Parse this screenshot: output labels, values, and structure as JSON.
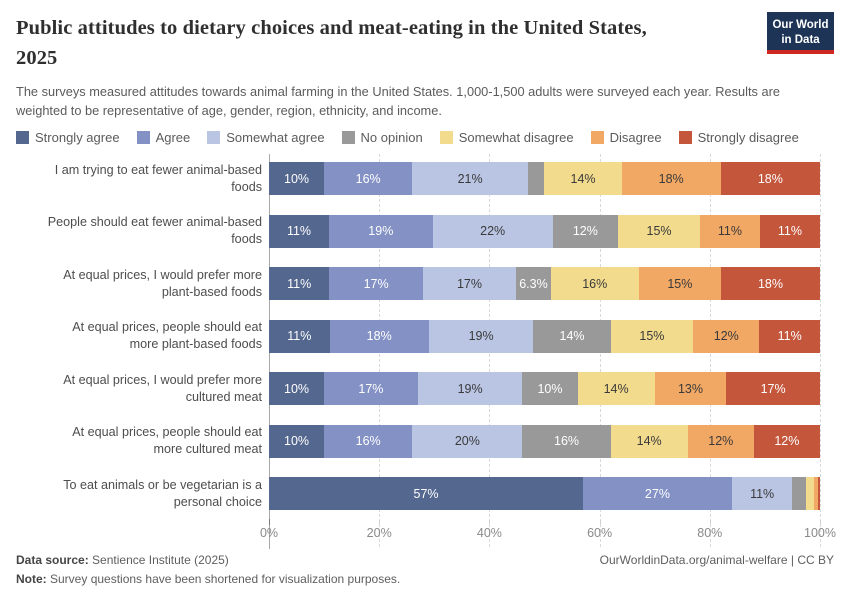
{
  "header": {
    "title": "Public attitudes to dietary choices and meat-eating in the United States,\n2025",
    "subtitle": "The surveys measured attitudes towards animal farming in the United States. 1,000-1,500 adults were surveyed each year. Results are weighted to be representative of age, gender, region, ethnicity, and income.",
    "logo_line1": "Our World",
    "logo_line2": "in Data"
  },
  "colors": {
    "strongly_agree": "#54678F",
    "agree": "#8391C5",
    "somewhat_agree": "#B9C5E3",
    "no_opinion": "#999999",
    "somewhat_disagree": "#F2DB8D",
    "disagree": "#F1A864",
    "strongly_disagree": "#C4563C",
    "label_light": "#FFFFFF",
    "label_dark": "#3A3A3A",
    "logo_bg": "#1D3456",
    "logo_stripe": "#CF2722"
  },
  "legend": {
    "items": [
      {
        "key": "strongly_agree",
        "label": "Strongly agree"
      },
      {
        "key": "agree",
        "label": "Agree"
      },
      {
        "key": "somewhat_agree",
        "label": "Somewhat agree"
      },
      {
        "key": "no_opinion",
        "label": "No opinion"
      },
      {
        "key": "somewhat_disagree",
        "label": "Somewhat disagree"
      },
      {
        "key": "disagree",
        "label": "Disagree"
      },
      {
        "key": "strongly_disagree",
        "label": "Strongly disagree"
      }
    ]
  },
  "chart_data": {
    "type": "bar",
    "orientation": "horizontal",
    "stacked": true,
    "unit": "%",
    "xlim": [
      0,
      100
    ],
    "grid": "dashed-vertical",
    "legend_position": "top",
    "series_keys": [
      "strongly_agree",
      "agree",
      "somewhat_agree",
      "no_opinion",
      "somewhat_disagree",
      "disagree",
      "strongly_disagree"
    ],
    "dark_label_keys": [
      "somewhat_agree",
      "somewhat_disagree",
      "disagree"
    ],
    "x_ticks": [
      {
        "label": "0%",
        "value": 0
      },
      {
        "label": "20%",
        "value": 20
      },
      {
        "label": "40%",
        "value": 40
      },
      {
        "label": "60%",
        "value": 60
      },
      {
        "label": "80%",
        "value": 80
      },
      {
        "label": "100%",
        "value": 100
      }
    ],
    "rows": [
      {
        "category": "I am trying to eat fewer animal-based foods",
        "label_lines": "I am trying to eat fewer animal-based\nfoods",
        "values": [
          10,
          16,
          21,
          3,
          14,
          18,
          18
        ],
        "labels": [
          "10%",
          "16%",
          "21%",
          "",
          "14%",
          "18%",
          "18%"
        ]
      },
      {
        "category": "People should eat fewer animal-based foods",
        "label_lines": "People should eat fewer animal-based\nfoods",
        "values": [
          11,
          19,
          22,
          12,
          15,
          11,
          11
        ],
        "labels": [
          "11%",
          "19%",
          "22%",
          "12%",
          "15%",
          "11%",
          "11%"
        ]
      },
      {
        "category": "At equal prices, I would prefer more plant-based foods",
        "label_lines": "At equal prices, I would prefer more\nplant-based foods",
        "values": [
          11,
          17,
          17,
          6.3,
          16,
          15,
          18
        ],
        "labels": [
          "11%",
          "17%",
          "17%",
          "6.3%",
          "16%",
          "15%",
          "18%"
        ]
      },
      {
        "category": "At equal prices, people should eat more plant-based foods",
        "label_lines": "At equal prices, people should eat\nmore plant-based foods",
        "values": [
          11,
          18,
          19,
          14,
          15,
          12,
          11
        ],
        "labels": [
          "11%",
          "18%",
          "19%",
          "14%",
          "15%",
          "12%",
          "11%"
        ]
      },
      {
        "category": "At equal prices, I would prefer more cultured meat",
        "label_lines": "At equal prices, I would prefer more\ncultured meat",
        "values": [
          10,
          17,
          19,
          10,
          14,
          13,
          17
        ],
        "labels": [
          "10%",
          "17%",
          "19%",
          "10%",
          "14%",
          "13%",
          "17%"
        ]
      },
      {
        "category": "At equal prices, people should eat more cultured meat",
        "label_lines": "At equal prices, people should eat\nmore cultured meat",
        "values": [
          10,
          16,
          20,
          16,
          14,
          12,
          12
        ],
        "labels": [
          "10%",
          "16%",
          "20%",
          "16%",
          "14%",
          "12%",
          "12%"
        ]
      },
      {
        "category": "To eat animals or be vegetarian is a personal choice",
        "label_lines": "To eat animals or be vegetarian is a\npersonal choice",
        "values": [
          57,
          27,
          11,
          2.4,
          1.6,
          0.6,
          0.4
        ],
        "labels": [
          "57%",
          "27%",
          "11%",
          "",
          "",
          "",
          ""
        ]
      }
    ]
  },
  "footer": {
    "source_label": "Data source:",
    "source_value": " Sentience Institute (2025)",
    "note_label": "Note:",
    "note_value": " Survey questions have been shortened for visualization purposes.",
    "link": "OurWorldinData.org/animal-welfare",
    "license": " | CC BY"
  }
}
